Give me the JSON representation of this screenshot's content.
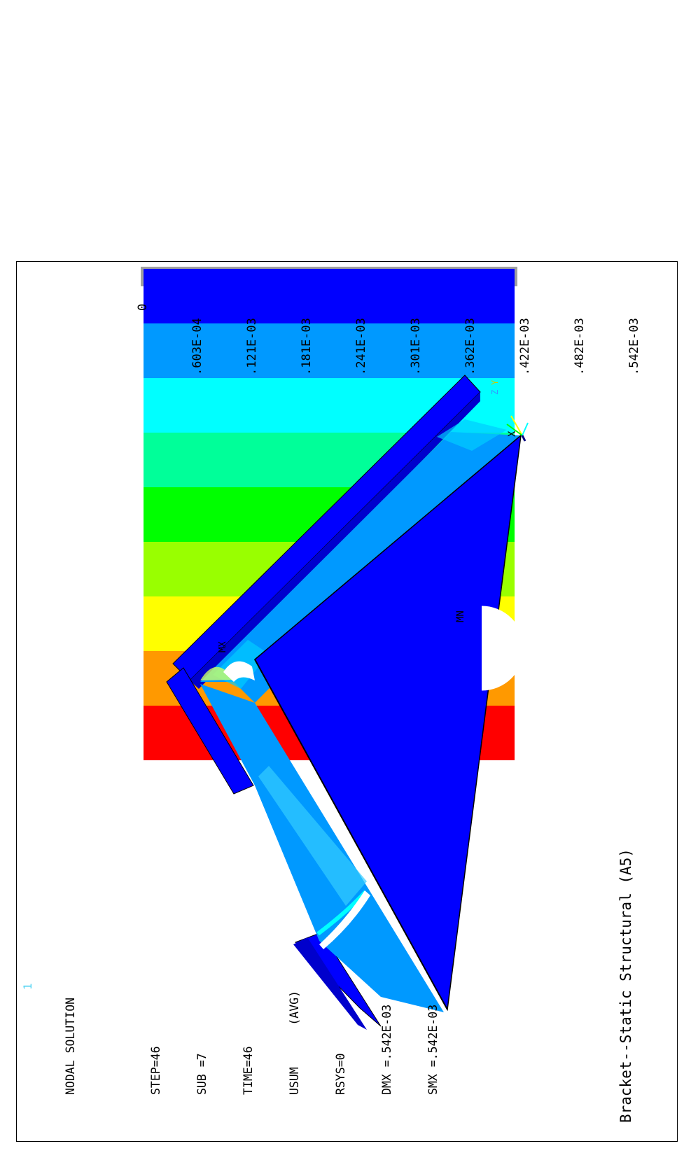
{
  "window_number": "1",
  "info": {
    "lines": [
      "NODAL SOLUTION",
      "",
      "STEP=46",
      "SUB =7",
      "TIME=46",
      "USUM      (AVG)",
      "RSYS=0",
      "DMX =.542E-03",
      "SMX =.542E-03"
    ]
  },
  "legend": {
    "labels": [
      "0",
      ".603E-04",
      ".121E-03",
      ".181E-03",
      ".241E-03",
      ".301E-03",
      ".362E-03",
      ".422E-03",
      ".482E-03",
      ".542E-03"
    ],
    "colors": [
      "#0000ff",
      "#0099ff",
      "#00ffff",
      "#00ff99",
      "#00ff00",
      "#99ff00",
      "#ffff00",
      "#ff9900",
      "#ff0000"
    ]
  },
  "markers": {
    "mx": "MX",
    "mn": "MN"
  },
  "triad": {
    "x": "X",
    "y": "Y",
    "z": "Z"
  },
  "title": "Bracket--Static Structural (A5)",
  "colors": {
    "frame": "#000000",
    "deep_blue": "#0000ff",
    "light_blue": "#0099ff",
    "cyan": "#00ffff"
  }
}
